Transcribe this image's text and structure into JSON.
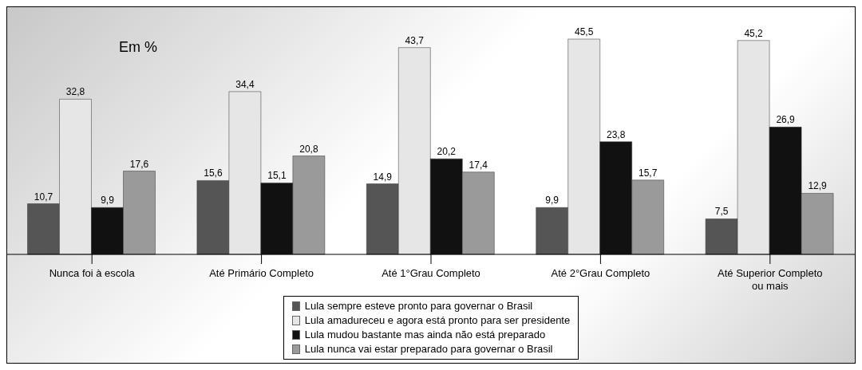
{
  "chart_data": {
    "type": "bar",
    "categories": [
      "Nunca foi à escola",
      "Até Primário Completo",
      "Até 1°Grau Completo",
      "Até 2°Grau Completo",
      "Até Superior Completo ou mais"
    ],
    "series": [
      {
        "name": "Lula sempre esteve pronto para governar o Brasil",
        "color": "#555555",
        "values": [
          10.7,
          15.6,
          14.9,
          9.9,
          7.5
        ],
        "value_labels": [
          "10,7",
          "15,6",
          "14,9",
          "9,9",
          "7,5"
        ]
      },
      {
        "name": "Lula amadureceu e agora está pronto para ser presidente",
        "color": "#e6e6e6",
        "values": [
          32.8,
          34.4,
          43.7,
          45.5,
          45.2
        ],
        "value_labels": [
          "32,8",
          "34,4",
          "43,7",
          "45,5",
          "45,2"
        ]
      },
      {
        "name": "Lula mudou bastante mas ainda não está preparado",
        "color": "#111111",
        "values": [
          9.9,
          15.1,
          20.2,
          23.8,
          26.9
        ],
        "value_labels": [
          "9,9",
          "15,1",
          "20,2",
          "23,8",
          "26,9"
        ]
      },
      {
        "name": "Lula nunca vai estar preparado para governar o Brasil",
        "color": "#9a9a9a",
        "values": [
          17.6,
          20.8,
          17.4,
          15.7,
          12.9
        ],
        "value_labels": [
          "17,6",
          "20,8",
          "17,4",
          "15,7",
          "12,9"
        ]
      }
    ],
    "annotations": [
      "Em %"
    ],
    "legend": "bottom"
  }
}
